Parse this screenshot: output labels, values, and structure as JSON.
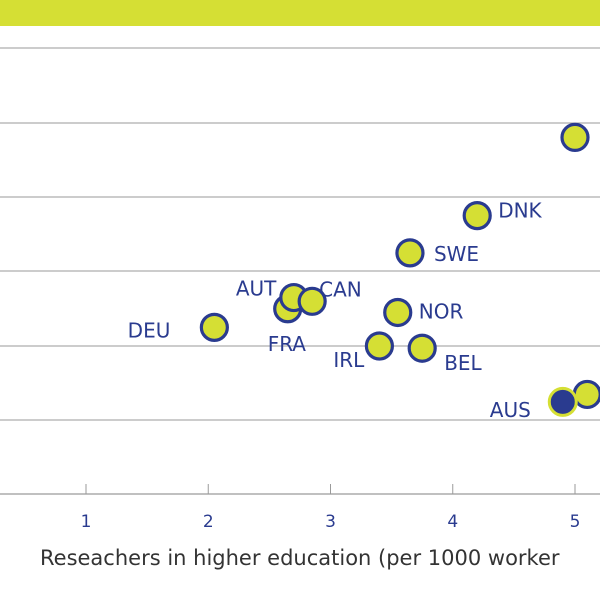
{
  "colors": {
    "band": "#d5df34",
    "point_fill": "#d5df34",
    "point_stroke": "#2a3b8f",
    "highlight_fill": "#2a3b8f",
    "grid": "#9a9a9a",
    "text": "#2a3b8f"
  },
  "chart_data": {
    "type": "scatter",
    "title": "",
    "xlabel": "Reseachers in higher education (per 1000 worker",
    "ylabel": "",
    "x_ticks": [
      1,
      2,
      3,
      4,
      5
    ],
    "grid": "horizontal",
    "points": [
      {
        "label": "DEU",
        "x": 2.05,
        "y": 2.25,
        "highlight": false
      },
      {
        "label": "FRA",
        "x": 2.65,
        "y": 2.5,
        "highlight": false
      },
      {
        "label": "AUT",
        "x": 2.7,
        "y": 2.65,
        "highlight": false
      },
      {
        "label": "CAN",
        "x": 2.85,
        "y": 2.6,
        "highlight": false
      },
      {
        "label": "IRL",
        "x": 3.4,
        "y": 2.0,
        "highlight": false
      },
      {
        "label": "NOR",
        "x": 3.55,
        "y": 2.45,
        "highlight": false
      },
      {
        "label": "BEL",
        "x": 3.75,
        "y": 1.97,
        "highlight": false
      },
      {
        "label": "SWE",
        "x": 3.65,
        "y": 3.25,
        "highlight": false
      },
      {
        "label": "DNK",
        "x": 4.2,
        "y": 3.75,
        "highlight": false
      },
      {
        "label": "",
        "x": 5.0,
        "y": 4.8,
        "highlight": false
      },
      {
        "label": "",
        "x": 5.1,
        "y": 1.35,
        "highlight": false
      },
      {
        "label": "AUS",
        "x": 4.9,
        "y": 1.25,
        "highlight": true
      }
    ]
  }
}
